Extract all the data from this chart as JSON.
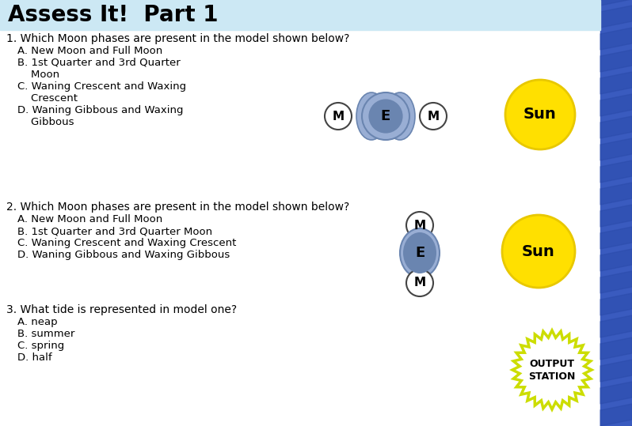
{
  "title": "Assess It!  Part 1",
  "bg_color": "#ffffff",
  "title_bg": "#cce8f4",
  "q1_text": "1. Which Moon phases are present in the model shown below?",
  "q1_opts": [
    "A. New Moon and Full Moon",
    "B. 1st Quarter and 3rd Quarter",
    "    Moon",
    "C. Waning Crescent and Waxing",
    "    Crescent",
    "D. Waning Gibbous and Waxing",
    "    Gibbous"
  ],
  "q2_text": "2. Which Moon phases are present in the model shown below?",
  "q2_opts": [
    "A. New Moon and Full Moon",
    "B. 1st Quarter and 3rd Quarter Moon",
    "C. Waning Crescent and Waxing Crescent",
    "D. Waning Gibbous and Waxing Gibbous"
  ],
  "q3_text": "3. What tide is represented in model one?",
  "q3_opts": [
    "A. neap",
    "B. summer",
    "C. spring",
    "D. half"
  ],
  "sun_color": "#FFE000",
  "sun_edge": "#E8C800",
  "earth_outer": "#99aed4",
  "earth_inner": "#6a85b0",
  "moon_color": "#ffffff",
  "moon_edge": "#444444",
  "border_blue": "#3a5bbf",
  "output_edge": "#ccdd00",
  "fig_w": 7.98,
  "fig_h": 5.39,
  "dpi": 100
}
